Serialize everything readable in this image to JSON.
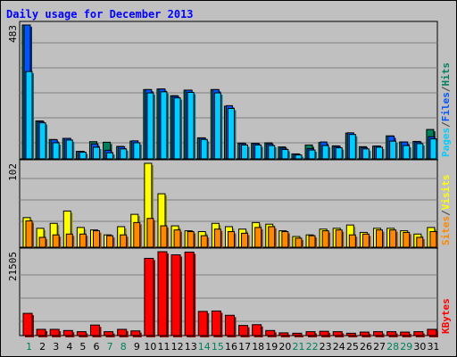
{
  "title": "Daily usage for December 2013",
  "colors": {
    "pages": "#00ccff",
    "files": "#0055ff",
    "hits": "#00805c",
    "sites": "#ff8800",
    "visits": "#ffff00",
    "kbytes": "#ff0000",
    "weekday": "#000000",
    "weekend": "#00805c"
  },
  "chart_data": [
    {
      "type": "bar",
      "panel": "hits-files-pages",
      "ymax_label": "483",
      "ylim": [
        0,
        483
      ],
      "legend": [
        "Pages",
        "/",
        "Files",
        "/",
        "Hits"
      ],
      "categories": [
        "1",
        "2",
        "3",
        "4",
        "5",
        "6",
        "7",
        "8",
        "9",
        "10",
        "11",
        "12",
        "13",
        "14",
        "15",
        "16",
        "17",
        "18",
        "19",
        "20",
        "21",
        "22",
        "23",
        "24",
        "25",
        "26",
        "27",
        "28",
        "29",
        "30",
        "31"
      ],
      "series": [
        {
          "name": "Hits",
          "values": [
            483,
            137,
            70,
            74,
            27,
            62,
            60,
            45,
            64,
            250,
            252,
            228,
            248,
            76,
            250,
            190,
            57,
            56,
            58,
            43,
            18,
            50,
            59,
            47,
            93,
            44,
            46,
            83,
            61,
            63,
            106
          ]
        },
        {
          "name": "Files",
          "values": [
            483,
            135,
            69,
            74,
            27,
            54,
            31,
            44,
            65,
            250,
            252,
            226,
            248,
            75,
            250,
            192,
            55,
            55,
            54,
            39,
            17,
            37,
            61,
            45,
            94,
            41,
            46,
            82,
            61,
            61,
            80
          ]
        },
        {
          "name": "Pages",
          "values": [
            315,
            130,
            58,
            68,
            24,
            42,
            22,
            36,
            58,
            238,
            242,
            220,
            240,
            70,
            238,
            182,
            50,
            50,
            48,
            34,
            14,
            32,
            48,
            40,
            88,
            36,
            42,
            64,
            48,
            55,
            72
          ]
        }
      ]
    },
    {
      "type": "bar",
      "panel": "visits-sites",
      "ymax_label": "102",
      "ylim": [
        0,
        102
      ],
      "legend": [
        "Sites",
        "/",
        "Visits"
      ],
      "categories": [
        "1",
        "2",
        "3",
        "4",
        "5",
        "6",
        "7",
        "8",
        "9",
        "10",
        "11",
        "12",
        "13",
        "14",
        "15",
        "16",
        "17",
        "18",
        "19",
        "20",
        "21",
        "22",
        "23",
        "24",
        "25",
        "26",
        "27",
        "28",
        "29",
        "30",
        "31"
      ],
      "series": [
        {
          "name": "Visits",
          "values": [
            36,
            23,
            29,
            44,
            24,
            21,
            15,
            25,
            40,
            102,
            65,
            26,
            20,
            19,
            29,
            25,
            22,
            30,
            28,
            20,
            13,
            15,
            22,
            23,
            27,
            18,
            23,
            23,
            20,
            16,
            24
          ]
        },
        {
          "name": "Sites",
          "values": [
            32,
            12,
            15,
            16,
            16,
            20,
            14,
            15,
            30,
            35,
            26,
            21,
            19,
            14,
            22,
            19,
            17,
            24,
            25,
            19,
            11,
            14,
            20,
            21,
            15,
            16,
            21,
            21,
            18,
            12,
            19
          ]
        }
      ]
    },
    {
      "type": "bar",
      "panel": "kbytes",
      "ymax_label": "21505",
      "ylim": [
        0,
        21505
      ],
      "legend": [
        "KBytes"
      ],
      "categories": [
        "1",
        "2",
        "3",
        "4",
        "5",
        "6",
        "7",
        "8",
        "9",
        "10",
        "11",
        "12",
        "13",
        "14",
        "15",
        "16",
        "17",
        "18",
        "19",
        "20",
        "21",
        "22",
        "23",
        "24",
        "25",
        "26",
        "27",
        "28",
        "29",
        "30",
        "31"
      ],
      "series": [
        {
          "name": "KBytes",
          "values": [
            5700,
            1600,
            1600,
            1300,
            1000,
            2700,
            1000,
            1600,
            1200,
            19800,
            21500,
            20700,
            21400,
            6200,
            6300,
            5200,
            2600,
            2800,
            1300,
            700,
            600,
            1000,
            1100,
            1000,
            600,
            900,
            1000,
            1000,
            900,
            1000,
            1600
          ]
        }
      ]
    }
  ],
  "day_labels": [
    "1",
    "2",
    "3",
    "4",
    "5",
    "6",
    "7",
    "8",
    "9",
    "10",
    "11",
    "12",
    "13",
    "14",
    "15",
    "16",
    "17",
    "18",
    "19",
    "20",
    "21",
    "22",
    "23",
    "24",
    "25",
    "26",
    "27",
    "28",
    "29",
    "30",
    "31"
  ],
  "weekend_days": [
    "1",
    "7",
    "8",
    "14",
    "15",
    "21",
    "22",
    "28",
    "29"
  ]
}
